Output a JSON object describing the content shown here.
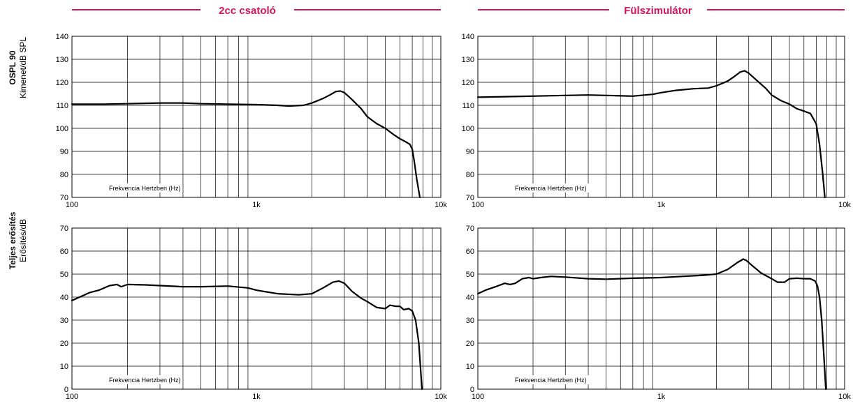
{
  "headers": {
    "left": "2cc csatoló",
    "right": "Fülszimulátor"
  },
  "rows": {
    "top": {
      "title": "OSPL 90",
      "subtitle": "Kimenet/dB SPL"
    },
    "bottom": {
      "title": "Teljes erősítés",
      "subtitle": "Erősítés/dB"
    }
  },
  "colors": {
    "accent": "#d4145a",
    "line": "#000000"
  },
  "chart_data": [
    {
      "id": "ospl-coupler",
      "type": "line",
      "xlabel": "Frekvencia Hertzben (Hz)",
      "ylabel": "Kimenet/dB SPL",
      "xscale": "log",
      "xlim": [
        100,
        10000
      ],
      "ylim": [
        70,
        140
      ],
      "yticks": [
        70,
        80,
        90,
        100,
        110,
        120,
        130,
        140
      ],
      "xticks": [
        {
          "v": 100,
          "label": "100"
        },
        {
          "v": 1000,
          "label": "1k"
        },
        {
          "v": 10000,
          "label": "10k"
        }
      ],
      "grid": true,
      "x": [
        100,
        150,
        200,
        300,
        400,
        500,
        700,
        1000,
        1300,
        1500,
        1800,
        2000,
        2300,
        2500,
        2700,
        2850,
        3000,
        3300,
        3700,
        4000,
        4500,
        5000,
        5500,
        6000,
        6500,
        6800,
        7000,
        7200,
        7400,
        7700
      ],
      "y": [
        110.5,
        110.5,
        110.7,
        111,
        111,
        110.7,
        110.5,
        110.3,
        110,
        109.7,
        110,
        111,
        113,
        114.5,
        116,
        116.2,
        115.5,
        112.5,
        108.5,
        105,
        102,
        100,
        97.5,
        95.5,
        94,
        93,
        91,
        85,
        78,
        70
      ]
    },
    {
      "id": "ospl-ear",
      "type": "line",
      "xlabel": "Frekvencia Hertzben (Hz)",
      "ylabel": "Kimenet/dB SPL",
      "xscale": "log",
      "xlim": [
        100,
        10000
      ],
      "ylim": [
        70,
        140
      ],
      "yticks": [
        70,
        80,
        90,
        100,
        110,
        120,
        130,
        140
      ],
      "xticks": [
        {
          "v": 100,
          "label": "100"
        },
        {
          "v": 1000,
          "label": "1k"
        },
        {
          "v": 10000,
          "label": "10k"
        }
      ],
      "grid": true,
      "x": [
        100,
        150,
        200,
        300,
        400,
        500,
        700,
        900,
        1000,
        1200,
        1500,
        1800,
        2000,
        2300,
        2500,
        2700,
        2850,
        3000,
        3300,
        3700,
        4000,
        4500,
        5000,
        5500,
        6000,
        6500,
        7000,
        7300,
        7600,
        7800
      ],
      "y": [
        113.5,
        113.8,
        114,
        114.3,
        114.5,
        114.3,
        114,
        114.8,
        115.5,
        116.5,
        117.2,
        117.5,
        118.5,
        120.5,
        122.5,
        124.5,
        125,
        124,
        121,
        117.5,
        114.5,
        112,
        110.5,
        108.5,
        107.5,
        106.5,
        102,
        93,
        80,
        70
      ]
    },
    {
      "id": "gain-coupler",
      "type": "line",
      "xlabel": "Frekvencia Hertzben (Hz)",
      "ylabel": "Erősítés/dB",
      "xscale": "log",
      "xlim": [
        100,
        10000
      ],
      "ylim": [
        0,
        70
      ],
      "yticks": [
        0,
        10,
        20,
        30,
        40,
        50,
        60,
        70
      ],
      "xticks": [
        {
          "v": 100,
          "label": "100"
        },
        {
          "v": 1000,
          "label": "1k"
        },
        {
          "v": 10000,
          "label": "10k"
        }
      ],
      "grid": true,
      "x": [
        100,
        110,
        125,
        140,
        160,
        175,
        185,
        200,
        250,
        300,
        400,
        500,
        700,
        900,
        1000,
        1300,
        1700,
        2000,
        2300,
        2600,
        2800,
        3000,
        3300,
        3700,
        4000,
        4500,
        5000,
        5300,
        5700,
        6000,
        6300,
        6700,
        7000,
        7300,
        7600,
        7900
      ],
      "y": [
        38.5,
        40,
        42,
        43,
        45,
        45.5,
        44.5,
        45.5,
        45.3,
        45,
        44.5,
        44.5,
        44.8,
        44,
        43,
        41.5,
        41,
        41.5,
        44,
        46.5,
        47,
        46,
        42.5,
        39.5,
        38,
        35.5,
        35,
        36.5,
        36,
        36,
        34.5,
        35,
        34,
        30,
        20,
        0
      ]
    },
    {
      "id": "gain-ear",
      "type": "line",
      "xlabel": "Frekvencia Hertzben (Hz)",
      "ylabel": "Erősítés/dB",
      "xscale": "log",
      "xlim": [
        100,
        10000
      ],
      "ylim": [
        0,
        70
      ],
      "yticks": [
        0,
        10,
        20,
        30,
        40,
        50,
        60,
        70
      ],
      "xticks": [
        {
          "v": 100,
          "label": "100"
        },
        {
          "v": 1000,
          "label": "1k"
        },
        {
          "v": 10000,
          "label": "10k"
        }
      ],
      "grid": true,
      "x": [
        100,
        110,
        125,
        140,
        150,
        160,
        175,
        190,
        200,
        220,
        250,
        300,
        400,
        500,
        700,
        1000,
        1300,
        1700,
        2000,
        2300,
        2600,
        2800,
        2900,
        3100,
        3500,
        4000,
        4300,
        4700,
        5000,
        5500,
        6000,
        6500,
        6900,
        7100,
        7300,
        7500,
        7700,
        7900
      ],
      "y": [
        41.5,
        43,
        44.5,
        46,
        45.5,
        46,
        48,
        48.5,
        48,
        48.5,
        49,
        48.7,
        48,
        47.8,
        48.2,
        48.5,
        49,
        49.5,
        50,
        52,
        55,
        56.5,
        56,
        54,
        50.5,
        48,
        46.5,
        46.5,
        48,
        48.2,
        48,
        48,
        47,
        45,
        40,
        30,
        15,
        0
      ]
    }
  ]
}
